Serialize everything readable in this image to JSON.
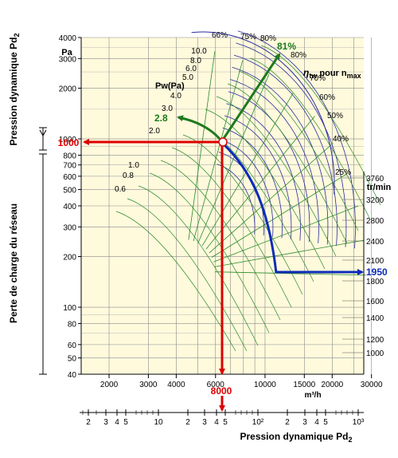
{
  "chart_data": {
    "type": "line",
    "axes": {
      "left_title": "Pression dynamique Pd",
      "left_title_sub": "2",
      "left_lower_title": "Perte de charge du réseau",
      "left_unit": "Pa",
      "left_ticks": [
        4000,
        3000,
        2000,
        1000,
        800,
        700,
        600,
        500,
        400,
        300,
        200,
        100,
        80,
        60,
        50,
        40
      ],
      "bottom_ticks": [
        2000,
        3000,
        4000,
        6000,
        10000,
        15000,
        20000,
        30000
      ],
      "bottom_unit": "m³/h",
      "bottom2_title": "Pression dynamique Pd",
      "bottom2_title_sub": "2",
      "bottom2_ticks": [
        "2",
        "3",
        "4",
        "5",
        "10",
        "2",
        "3",
        "4",
        "5",
        "10²",
        "2",
        "3",
        "4",
        "5",
        "10³"
      ],
      "right_unit": "tr/min",
      "right_ticks": [
        3760,
        3200,
        2800,
        2400,
        2100,
        1800,
        1600,
        1400,
        1200,
        1000
      ]
    },
    "efficiency": {
      "title_main": "η",
      "title_sub": "tw",
      "title_suffix": " pour n",
      "title_suffix_sub": "max",
      "labels": [
        "66%",
        "75%",
        "80%",
        "80%",
        "70%",
        "60%",
        "50%",
        "40%",
        "25%"
      ],
      "highlight": "81%"
    },
    "power": {
      "title": "Pw(Pa)",
      "labels": [
        "10.0",
        "8.0",
        "6.0",
        "5.0",
        "4.0",
        "3.0",
        "2.0",
        "1.0",
        "0.8",
        "0.6"
      ],
      "highlight": "2.8"
    },
    "operating_point": {
      "pressure_label": "1000",
      "flow_label": "8000",
      "speed_label": "1950",
      "pressure": 1000,
      "flow": 8000,
      "speed": 1950,
      "efficiency": 81,
      "power": 2.8
    },
    "colors": {
      "plot_bg": "#fffadc",
      "grid": "#888888",
      "fan_curves": "#2a2aa0",
      "efficiency_curves": "#2a8a2a",
      "red": "#dd0000",
      "blue": "#0c2ab8",
      "green": "#1e7a1e"
    }
  }
}
